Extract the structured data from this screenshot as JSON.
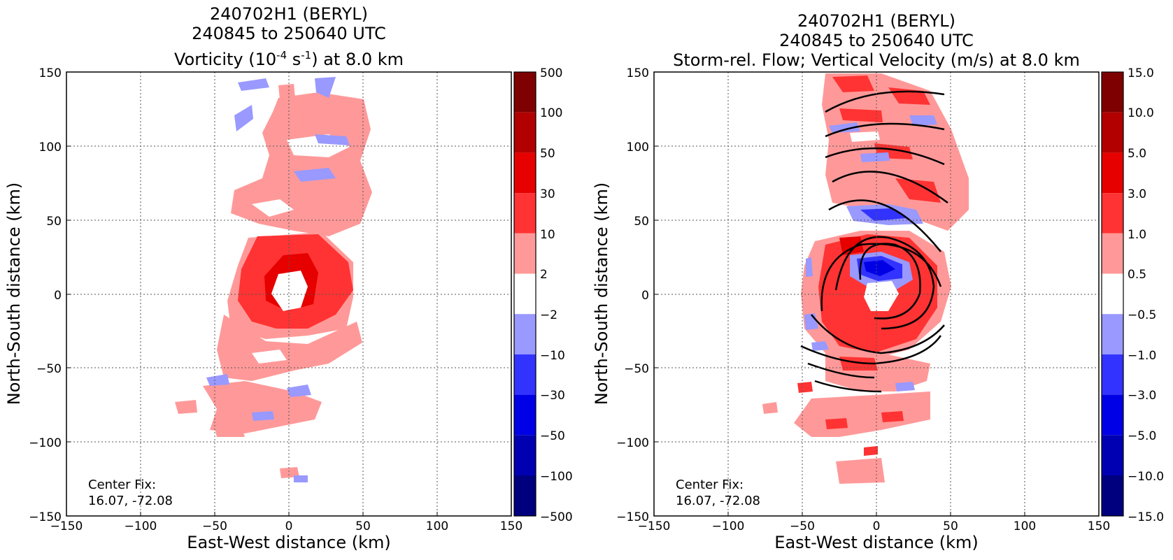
{
  "chart_data": [
    {
      "type": "heatmap",
      "title_line1": "240702H1 (BERYL)",
      "title_line2": "240845 to 250640 UTC",
      "title_line3_pre": "Vorticity (10",
      "title_line3_sup1": "-4",
      "title_line3_mid": " s",
      "title_line3_sup2": "-1",
      "title_line3_post": ") at 8.0 km",
      "xlabel": "East-West distance (km)",
      "ylabel": "North-South distance (km)",
      "xlim": [
        -150,
        150
      ],
      "ylim": [
        -150,
        150
      ],
      "x_ticks": [
        -150,
        -100,
        -50,
        0,
        50,
        100,
        150
      ],
      "y_ticks": [
        -150,
        -100,
        -50,
        0,
        50,
        100,
        150
      ],
      "x_tick_labels": [
        "−150",
        "−100",
        "−50",
        "0",
        "50",
        "100",
        "150"
      ],
      "y_tick_labels": [
        "−150",
        "−100",
        "−50",
        "0",
        "50",
        "100",
        "150"
      ],
      "grid": true,
      "center_fix_label": "Center Fix:",
      "center_fix_value": "16.07, -72.08",
      "colorbar_labels": [
        "500",
        "100",
        "50",
        "30",
        "10",
        "2",
        "−2",
        "−10",
        "−30",
        "−50",
        "−100",
        "−500"
      ],
      "colorbar_colors": [
        "#7f0000",
        "#b20000",
        "#e60000",
        "#ff3333",
        "#ff9999",
        "#ffffff",
        "#9999ff",
        "#3333ff",
        "#0000e6",
        "#0000b2",
        "#00007f"
      ]
    },
    {
      "type": "heatmap",
      "title_line1": "240702H1 (BERYL)",
      "title_line2": "240845 to 250640 UTC",
      "title_line3": "Storm-rel. Flow; Vertical Velocity (m/s) at 8.0 km",
      "xlabel": "East-West distance (km)",
      "ylabel": "North-South distance (km)",
      "xlim": [
        -150,
        150
      ],
      "ylim": [
        -150,
        150
      ],
      "x_ticks": [
        -150,
        -100,
        -50,
        0,
        50,
        100,
        150
      ],
      "y_ticks": [
        -150,
        -100,
        -50,
        0,
        50,
        100,
        150
      ],
      "x_tick_labels": [
        "−150",
        "−100",
        "−50",
        "0",
        "50",
        "100",
        "150"
      ],
      "y_tick_labels": [
        "−150",
        "−100",
        "−50",
        "0",
        "50",
        "100",
        "150"
      ],
      "grid": true,
      "center_fix_label": "Center Fix:",
      "center_fix_value": "16.07, -72.08",
      "colorbar_labels": [
        "15.0",
        "10.0",
        "5.0",
        "3.0",
        "1.0",
        "0.5",
        "−0.5",
        "−1.0",
        "−3.0",
        "−5.0",
        "−10.0",
        "−15.0"
      ],
      "colorbar_colors": [
        "#7f0000",
        "#b20000",
        "#e60000",
        "#ff3333",
        "#ff9999",
        "#ffffff",
        "#9999ff",
        "#3333ff",
        "#0000e6",
        "#0000b2",
        "#00007f"
      ]
    }
  ]
}
